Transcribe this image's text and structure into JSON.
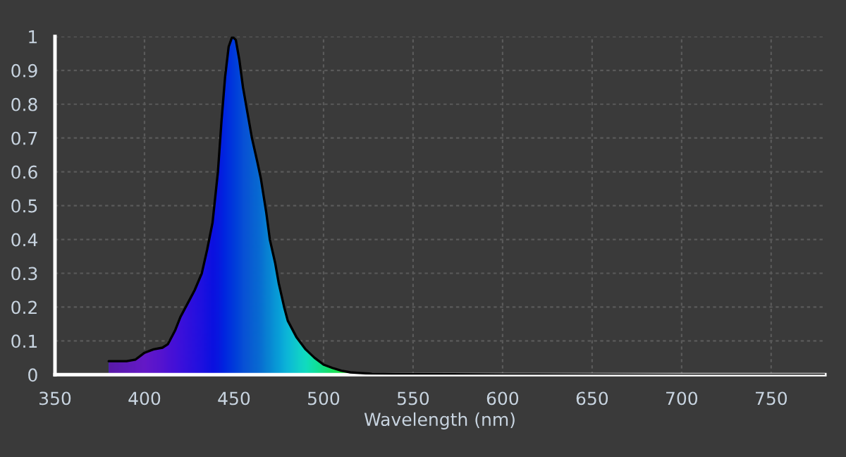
{
  "chart_data": {
    "type": "area",
    "xlabel": "Wavelength (nm)",
    "x": [
      380,
      390,
      395,
      400,
      405,
      410,
      413,
      417,
      420,
      425,
      428,
      432,
      435,
      438,
      441,
      443,
      445,
      447,
      449,
      451,
      453,
      455,
      458,
      460,
      463,
      465,
      468,
      470,
      473,
      475,
      478,
      480,
      485,
      490,
      495,
      500,
      505,
      510,
      515,
      520,
      527,
      540,
      600,
      700,
      780
    ],
    "series": [
      {
        "color": "#000000",
        "values": [
          0.04,
          0.04,
          0.045,
          0.065,
          0.075,
          0.08,
          0.09,
          0.13,
          0.17,
          0.22,
          0.25,
          0.3,
          0.37,
          0.45,
          0.6,
          0.75,
          0.88,
          0.97,
          1.0,
          0.99,
          0.93,
          0.85,
          0.76,
          0.7,
          0.63,
          0.58,
          0.48,
          0.4,
          0.33,
          0.27,
          0.2,
          0.16,
          0.11,
          0.075,
          0.05,
          0.03,
          0.02,
          0.012,
          0.007,
          0.005,
          0.003,
          0.002,
          0.001,
          0.0,
          0.0
        ],
        "colors": [
          "#5a1aa8",
          "#5e1ab8",
          "#621ac0",
          "#6418c8",
          "#5c16cc",
          "#5414d0",
          "#4c12d4",
          "#4410d8",
          "#3c10da",
          "#3010dc",
          "#2810de",
          "#1e10e0",
          "#1410e0",
          "#0c10e0",
          "#0818e0",
          "#0420e0",
          "#0028e0",
          "#0030de",
          "#0038dc",
          "#0040da",
          "#0448d8",
          "#0850d6",
          "#0858d4",
          "#0860d2",
          "#0868d2",
          "#0870d2",
          "#0880d2",
          "#0888d4",
          "#0898d6",
          "#08a0d8",
          "#0cb0d8",
          "#0cb8d8",
          "#10cccc",
          "#10dcc0",
          "#10e0a0",
          "#14e080",
          "#18e060",
          "#20e040",
          "#30e030",
          "#40d828",
          "#58d020",
          "#80d020",
          "#f0a000",
          "#c00000",
          "#800000"
        ]
      }
    ],
    "xlim": [
      350,
      780
    ],
    "ylim": [
      0,
      1
    ],
    "xticks": [
      350,
      400,
      450,
      500,
      550,
      600,
      650,
      700,
      750
    ],
    "yticks": [
      0,
      0.1,
      0.2,
      0.3,
      0.4,
      0.5,
      0.6,
      0.7,
      0.8,
      0.9,
      1
    ],
    "grid": true,
    "legend": false
  }
}
